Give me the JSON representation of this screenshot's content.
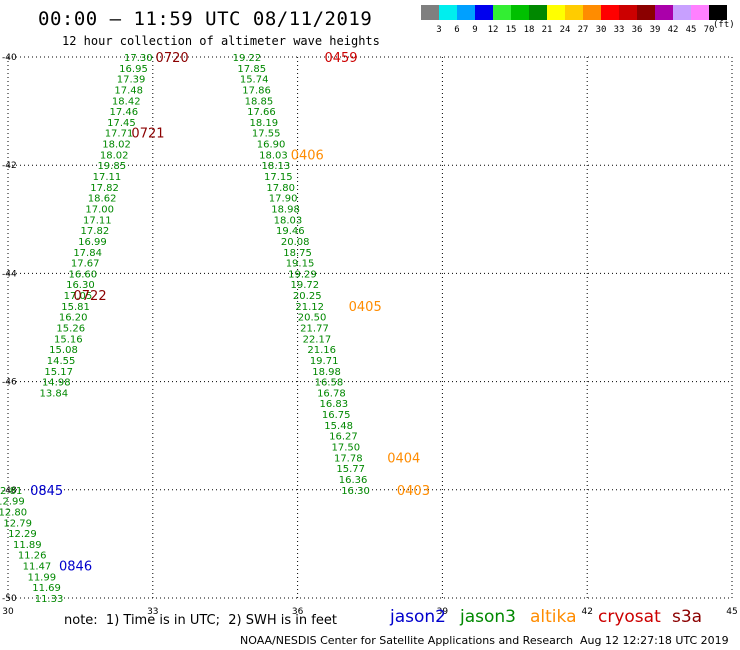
{
  "header": {
    "title": "00:00 – 11:59 UTC 08/11/2019",
    "subtitle": "12 hour collection of altimeter wave heights"
  },
  "color_scale": {
    "unit": "(ft)",
    "bins": [
      {
        "label": "3",
        "color": "#7f7f7f"
      },
      {
        "label": "6",
        "color": "#00eeee"
      },
      {
        "label": "9",
        "color": "#00a0ff"
      },
      {
        "label": "12",
        "color": "#0000ee"
      },
      {
        "label": "15",
        "color": "#33ee33"
      },
      {
        "label": "18",
        "color": "#00c000"
      },
      {
        "label": "21",
        "color": "#008800"
      },
      {
        "label": "24",
        "color": "#ffff00"
      },
      {
        "label": "27",
        "color": "#ffcc00"
      },
      {
        "label": "30",
        "color": "#ff8c00"
      },
      {
        "label": "33",
        "color": "#ff0000"
      },
      {
        "label": "36",
        "color": "#cc0000"
      },
      {
        "label": "39",
        "color": "#8b0000"
      },
      {
        "label": "42",
        "color": "#aa00aa"
      },
      {
        "label": "45",
        "color": "#c8a0ff"
      },
      {
        "label": "70",
        "color": "#ff80ff"
      },
      {
        "label": "",
        "color": "#000000"
      }
    ]
  },
  "footer": {
    "note": "note:  1) Time is in UTC;  2) SWH is in feet",
    "satellites": [
      {
        "name": "jason2",
        "color": "#0000cc"
      },
      {
        "name": "jason3",
        "color": "#008800"
      },
      {
        "name": "altika",
        "color": "#ff8c00"
      },
      {
        "name": "cryosat",
        "color": "#cc0000"
      },
      {
        "name": "s3a",
        "color": "#8b0000"
      }
    ],
    "credit": "NOAA/NESDIS Center for Satellite Applications and Research",
    "timestamp": "Aug 12 12:27:18 UTC 2019"
  },
  "chart_data": {
    "type": "scatter",
    "xlim": [
      30,
      45
    ],
    "ylim": [
      -50,
      -40
    ],
    "x_ticks": [
      "30",
      "33",
      "36",
      "39",
      "42",
      "45"
    ],
    "y_ticks": [
      "-40",
      "-42",
      "-44",
      "-46",
      "-48",
      "-50"
    ],
    "grid": true,
    "tracks": [
      {
        "color": "#008800",
        "points": [
          [
            32.7,
            -40.0,
            "17.30"
          ],
          [
            32.6,
            -40.2,
            "16.95"
          ],
          [
            32.55,
            -40.4,
            "17.39"
          ],
          [
            32.5,
            -40.6,
            "17.48"
          ],
          [
            32.45,
            -40.8,
            "18.42"
          ],
          [
            32.4,
            -41.0,
            "17.46"
          ],
          [
            32.35,
            -41.2,
            "17.45"
          ],
          [
            32.3,
            -41.4,
            "17.71"
          ],
          [
            32.25,
            -41.6,
            "18.02"
          ],
          [
            32.2,
            -41.8,
            "18.02"
          ],
          [
            32.15,
            -42.0,
            "19.85"
          ],
          [
            32.05,
            -42.2,
            "17.11"
          ],
          [
            32.0,
            -42.4,
            "17.82"
          ],
          [
            31.95,
            -42.6,
            "18.62"
          ],
          [
            31.9,
            -42.8,
            "17.00"
          ],
          [
            31.85,
            -43.0,
            "17.11"
          ],
          [
            31.8,
            -43.2,
            "17.82"
          ],
          [
            31.75,
            -43.4,
            "16.99"
          ],
          [
            31.65,
            -43.6,
            "17.84"
          ],
          [
            31.6,
            -43.8,
            "17.67"
          ],
          [
            31.55,
            -44.0,
            "16.60"
          ],
          [
            31.5,
            -44.2,
            "16.30"
          ],
          [
            31.45,
            -44.4,
            "17.05"
          ],
          [
            31.4,
            -44.6,
            "15.81"
          ],
          [
            31.35,
            -44.8,
            "16.20"
          ],
          [
            31.3,
            -45.0,
            "15.26"
          ],
          [
            31.25,
            -45.2,
            "15.16"
          ],
          [
            31.15,
            -45.4,
            "15.08"
          ],
          [
            31.1,
            -45.6,
            "14.55"
          ],
          [
            31.05,
            -45.8,
            "15.17"
          ],
          [
            31.0,
            -46.0,
            "14.98"
          ],
          [
            30.95,
            -46.2,
            "13.84"
          ]
        ]
      },
      {
        "color": "#008800",
        "points": [
          [
            34.95,
            -40.0,
            "19.22"
          ],
          [
            35.05,
            -40.2,
            "17.85"
          ],
          [
            35.1,
            -40.4,
            "15.74"
          ],
          [
            35.15,
            -40.6,
            "17.86"
          ],
          [
            35.2,
            -40.8,
            "18.85"
          ],
          [
            35.25,
            -41.0,
            "17.66"
          ],
          [
            35.3,
            -41.2,
            "18.19"
          ],
          [
            35.35,
            -41.4,
            "17.55"
          ],
          [
            35.45,
            -41.6,
            "16.90"
          ],
          [
            35.5,
            -41.8,
            "18.03"
          ],
          [
            35.55,
            -42.0,
            "18.13"
          ],
          [
            35.6,
            -42.2,
            "17.15"
          ],
          [
            35.65,
            -42.4,
            "17.80"
          ],
          [
            35.7,
            -42.6,
            "17.90"
          ],
          [
            35.75,
            -42.8,
            "18.98"
          ],
          [
            35.8,
            -43.0,
            "18.03"
          ],
          [
            35.85,
            -43.2,
            "19.46"
          ],
          [
            35.95,
            -43.4,
            "20.08"
          ],
          [
            36.0,
            -43.6,
            "18.75"
          ],
          [
            36.05,
            -43.8,
            "19.15"
          ],
          [
            36.1,
            -44.0,
            "19.29"
          ],
          [
            36.15,
            -44.2,
            "19.72"
          ],
          [
            36.2,
            -44.4,
            "20.25"
          ],
          [
            36.25,
            -44.6,
            "21.12"
          ],
          [
            36.3,
            -44.8,
            "20.50"
          ],
          [
            36.35,
            -45.0,
            "21.77"
          ],
          [
            36.4,
            -45.2,
            "22.17"
          ],
          [
            36.5,
            -45.4,
            "21.16"
          ],
          [
            36.55,
            -45.6,
            "19.71"
          ],
          [
            36.6,
            -45.8,
            "18.98"
          ],
          [
            36.65,
            -46.0,
            "16.58"
          ],
          [
            36.7,
            -46.2,
            "16.78"
          ],
          [
            36.75,
            -46.4,
            "16.83"
          ],
          [
            36.8,
            -46.6,
            "16.75"
          ],
          [
            36.85,
            -46.8,
            "15.48"
          ],
          [
            36.95,
            -47.0,
            "16.27"
          ],
          [
            37.0,
            -47.2,
            "17.50"
          ],
          [
            37.05,
            -47.4,
            "17.78"
          ],
          [
            37.1,
            -47.6,
            "15.77"
          ],
          [
            37.15,
            -47.8,
            "16.36"
          ],
          [
            37.2,
            -48.0,
            "16.30"
          ]
        ]
      },
      {
        "color": "#008800",
        "points": [
          [
            30.0,
            -48.0,
            "12.81"
          ],
          [
            30.05,
            -48.2,
            "12.99"
          ],
          [
            30.1,
            -48.4,
            "12.80"
          ],
          [
            30.2,
            -48.6,
            "12.79"
          ],
          [
            30.3,
            -48.8,
            "12.29"
          ],
          [
            30.4,
            -49.0,
            "11.89"
          ],
          [
            30.5,
            -49.2,
            "11.26"
          ],
          [
            30.6,
            -49.4,
            "11.47"
          ],
          [
            30.7,
            -49.6,
            "11.99"
          ],
          [
            30.8,
            -49.8,
            "11.69"
          ],
          [
            30.85,
            -50.0,
            "11.33"
          ]
        ]
      }
    ],
    "time_labels": [
      [
        33.4,
        -40.0,
        "0720",
        "#8b0000"
      ],
      [
        32.9,
        -41.4,
        "0721",
        "#8b0000"
      ],
      [
        31.7,
        -44.4,
        "0722",
        "#8b0000"
      ],
      [
        36.9,
        -40.0,
        "0459",
        "#cc0000"
      ],
      [
        36.2,
        -41.8,
        "0406",
        "#ff8c00"
      ],
      [
        37.4,
        -44.6,
        "0405",
        "#ff8c00"
      ],
      [
        38.2,
        -47.4,
        "0404",
        "#ff8c00"
      ],
      [
        38.4,
        -48.0,
        "0403",
        "#ff8c00"
      ],
      [
        30.8,
        -48.0,
        "0845",
        "#0000cc"
      ],
      [
        31.4,
        -49.4,
        "0846",
        "#0000cc"
      ]
    ]
  }
}
